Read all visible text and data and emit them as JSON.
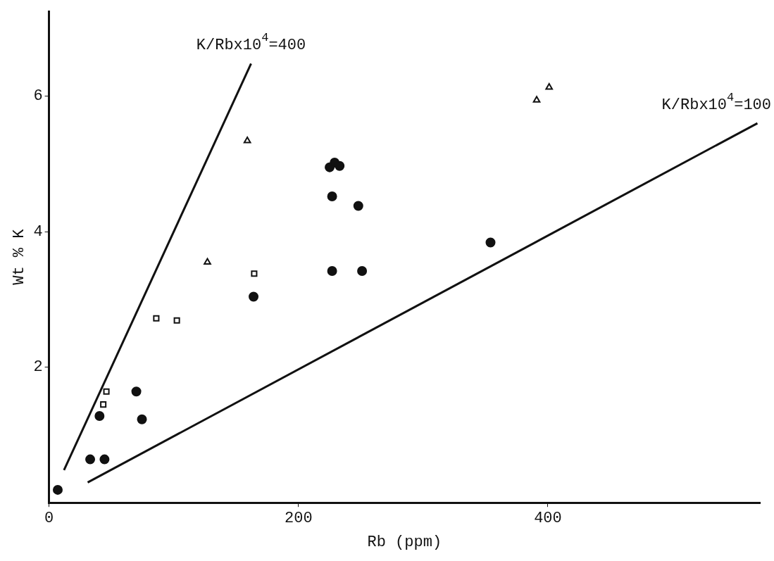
{
  "chart_data": {
    "type": "scatter",
    "xlabel": "Rb (ppm)",
    "ylabel": "Wt % K",
    "xlim": [
      0,
      570
    ],
    "ylim": [
      0,
      7.25
    ],
    "xticks": [
      0,
      200,
      400
    ],
    "yticks": [
      2,
      4,
      6
    ],
    "grid": false,
    "legend": false,
    "series": [
      {
        "type": "scatter",
        "marker": "circle",
        "color": "#111111",
        "x": [
          225,
          229,
          233,
          227,
          248,
          227,
          251,
          164,
          70,
          74.5,
          40.5,
          33,
          44.5,
          7,
          354
        ],
        "values": [
          4.95,
          5.02,
          4.97,
          4.52,
          4.38,
          3.42,
          3.42,
          3.04,
          1.64,
          1.23,
          1.28,
          0.64,
          0.64,
          0.19,
          3.84
        ]
      },
      {
        "type": "scatter",
        "marker": "square",
        "color": "#111111",
        "x": [
          164.5,
          86,
          102.5,
          46,
          43.5
        ],
        "values": [
          3.38,
          2.72,
          2.69,
          1.64,
          1.45
        ]
      },
      {
        "type": "scatter",
        "marker": "triangle",
        "color": "#111111",
        "x": [
          159,
          127,
          391,
          401
        ],
        "values": [
          5.34,
          3.55,
          5.94,
          6.13
        ]
      },
      {
        "type": "line",
        "marker": "none",
        "line_style": "solid",
        "color": "#111111",
        "x": [
          12,
          162
        ],
        "values": [
          0.48,
          6.48
        ]
      },
      {
        "type": "line",
        "marker": "none",
        "line_style": "solid",
        "color": "#111111",
        "x": [
          31,
          568
        ],
        "values": [
          0.3,
          5.6
        ]
      }
    ],
    "annotations": [
      {
        "text": "K/Rbx10$^{4}$=400",
        "x": 162,
        "y": 6.48
      },
      {
        "text": "K/Rbx10$^{4}$=100",
        "x": 568,
        "y": 5.6
      }
    ]
  }
}
